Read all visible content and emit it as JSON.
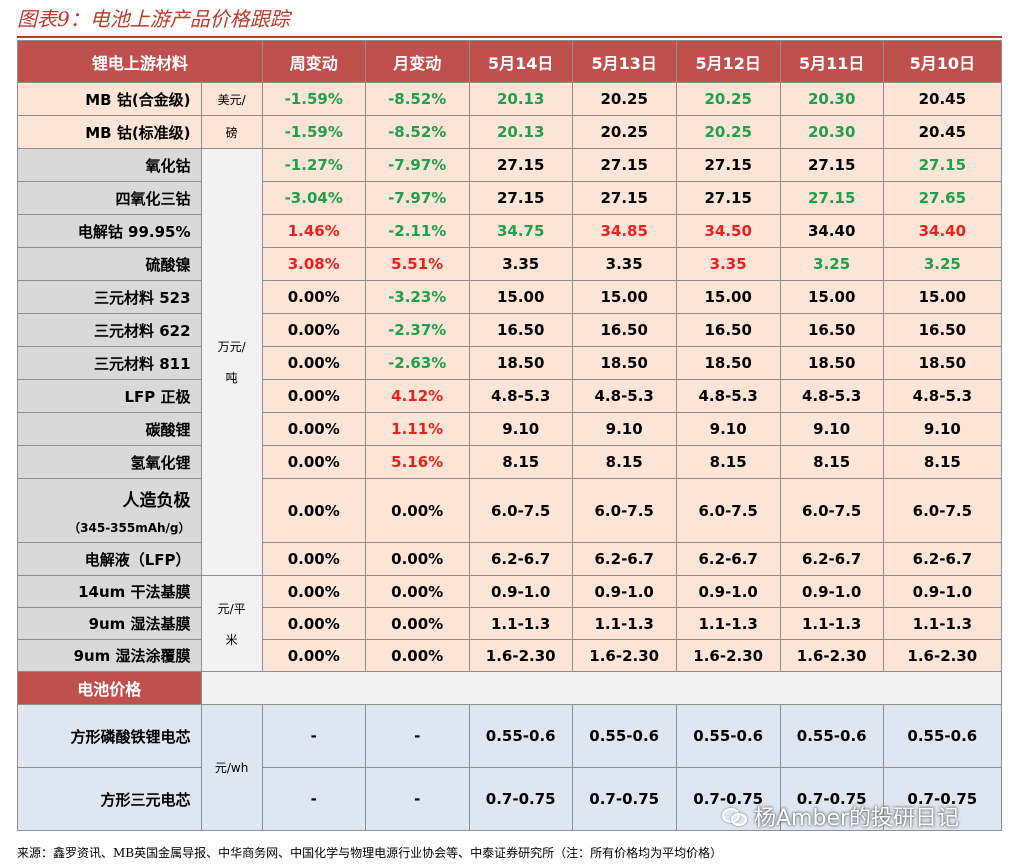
{
  "title": "图表9：电池上游产品价格跟踪",
  "header": {
    "material": "锂电上游材料",
    "weekly": "周变动",
    "monthly": "月变动",
    "dates": [
      "5月14日",
      "5月13日",
      "5月12日",
      "5月11日",
      "5月10日"
    ]
  },
  "units": {
    "usd_lb_1": "美元/",
    "usd_lb_2": "磅",
    "wan_ton_1": "万元/",
    "wan_ton_2": "吨",
    "yuan_sqm_1": "元/平",
    "yuan_sqm_2": "米",
    "yuan_wh": "元/wh"
  },
  "rows": [
    {
      "name": "MB 钴(合金级)",
      "weekly": "-1.59%",
      "monthly": "-8.52%",
      "prices": [
        "20.13",
        "20.25",
        "20.25",
        "20.30",
        "20.45"
      ]
    },
    {
      "name": "MB 钴(标准级)",
      "weekly": "-1.59%",
      "monthly": "-8.52%",
      "prices": [
        "20.13",
        "20.25",
        "20.25",
        "20.30",
        "20.45"
      ]
    },
    {
      "name": "氧化钴",
      "weekly": "-1.27%",
      "monthly": "-7.97%",
      "prices": [
        "27.15",
        "27.15",
        "27.15",
        "27.15",
        "27.15"
      ]
    },
    {
      "name": "四氧化三钴",
      "weekly": "-3.04%",
      "monthly": "-7.97%",
      "prices": [
        "27.15",
        "27.15",
        "27.15",
        "27.15",
        "27.65"
      ]
    },
    {
      "name": "电解钴 99.95%",
      "weekly": "1.46%",
      "monthly": "-2.11%",
      "prices": [
        "34.75",
        "34.85",
        "34.50",
        "34.40",
        "34.40"
      ]
    },
    {
      "name": "硫酸镍",
      "weekly": "3.08%",
      "monthly": "5.51%",
      "prices": [
        "3.35",
        "3.35",
        "3.35",
        "3.25",
        "3.25"
      ]
    },
    {
      "name": "三元材料 523",
      "weekly": "0.00%",
      "monthly": "-3.23%",
      "prices": [
        "15.00",
        "15.00",
        "15.00",
        "15.00",
        "15.00"
      ]
    },
    {
      "name": "三元材料 622",
      "weekly": "0.00%",
      "monthly": "-2.37%",
      "prices": [
        "16.50",
        "16.50",
        "16.50",
        "16.50",
        "16.50"
      ]
    },
    {
      "name": "三元材料 811",
      "weekly": "0.00%",
      "monthly": "-2.63%",
      "prices": [
        "18.50",
        "18.50",
        "18.50",
        "18.50",
        "18.50"
      ]
    },
    {
      "name": "LFP 正极",
      "weekly": "0.00%",
      "monthly": "4.12%",
      "prices": [
        "4.8-5.3",
        "4.8-5.3",
        "4.8-5.3",
        "4.8-5.3",
        "4.8-5.3"
      ]
    },
    {
      "name": "碳酸锂",
      "weekly": "0.00%",
      "monthly": "1.11%",
      "prices": [
        "9.10",
        "9.10",
        "9.10",
        "9.10",
        "9.10"
      ]
    },
    {
      "name": "氢氧化锂",
      "weekly": "0.00%",
      "monthly": "5.16%",
      "prices": [
        "8.15",
        "8.15",
        "8.15",
        "8.15",
        "8.15"
      ]
    },
    {
      "name": "人造负极",
      "sub": "（345-355mAh/g）",
      "weekly": "0.00%",
      "monthly": "0.00%",
      "prices": [
        "6.0-7.5",
        "6.0-7.5",
        "6.0-7.5",
        "6.0-7.5",
        "6.0-7.5"
      ]
    },
    {
      "name": "电解液（LFP）",
      "weekly": "0.00%",
      "monthly": "0.00%",
      "prices": [
        "6.2-6.7",
        "6.2-6.7",
        "6.2-6.7",
        "6.2-6.7",
        "6.2-6.7"
      ]
    },
    {
      "name": "14um 干法基膜",
      "weekly": "0.00%",
      "monthly": "0.00%",
      "prices": [
        "0.9-1.0",
        "0.9-1.0",
        "0.9-1.0",
        "0.9-1.0",
        "0.9-1.0"
      ]
    },
    {
      "name": "9um 湿法基膜",
      "weekly": "0.00%",
      "monthly": "0.00%",
      "prices": [
        "1.1-1.3",
        "1.1-1.3",
        "1.1-1.3",
        "1.1-1.3",
        "1.1-1.3"
      ]
    },
    {
      "name": "9um 湿法涂覆膜",
      "weekly": "0.00%",
      "monthly": "0.00%",
      "prices": [
        "1.6-2.30",
        "1.6-2.30",
        "1.6-2.30",
        "1.6-2.30",
        "1.6-2.30"
      ]
    }
  ],
  "battery": {
    "header": "电池价格",
    "rows": [
      {
        "name": "方形磷酸铁锂电芯",
        "weekly": "-",
        "monthly": "-",
        "prices": [
          "0.55-0.6",
          "0.55-0.6",
          "0.55-0.6",
          "0.55-0.6",
          "0.55-0.6"
        ]
      },
      {
        "name": "方形三元电芯",
        "weekly": "-",
        "monthly": "-",
        "prices": [
          "0.7-0.75",
          "0.7-0.75",
          "0.7-0.75",
          "0.7-0.75",
          "0.7-0.75"
        ]
      }
    ]
  },
  "source": "来源：鑫罗资讯、MB英国金属导报、中华商务网、中国化学与物理电源行业协会等、中泰证券研究所（注：所有价格均为平均价格）",
  "watermark": "杨Amber的投研日记",
  "colors": {
    "header_red": "#c0504d",
    "peach": "#fce4d6",
    "gray": "#d9d9d9",
    "blue": "#dde6f1",
    "up_red": "#e8231f",
    "down_green": "#1fa04a"
  }
}
